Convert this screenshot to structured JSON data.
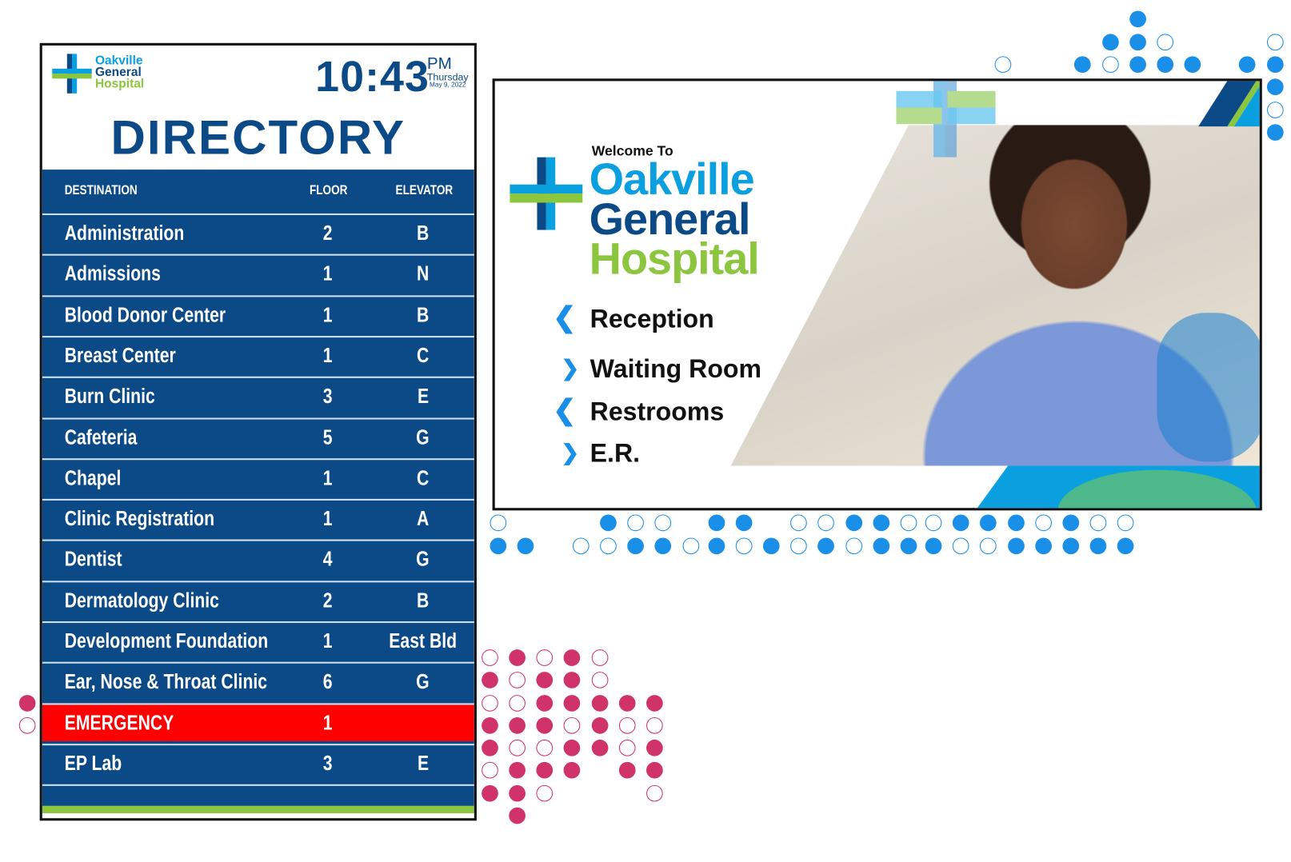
{
  "brand": {
    "line1": "Oakville",
    "line2": "General",
    "line3": "Hospital",
    "colors": {
      "blue": "#0b4a86",
      "light_blue": "#0aa0e0",
      "green": "#8cc63f",
      "emergency": "#ff0000",
      "dot_blue": "#1a8fe8",
      "dot_pink": "#d0326a"
    }
  },
  "directory": {
    "time": "10:43",
    "ampm": "PM",
    "weekday": "Thursday",
    "date": "May 9, 2022",
    "title": "DIRECTORY",
    "columns": {
      "destination": "DESTINATION",
      "floor": "FLOOR",
      "elevator": "ELEVATOR"
    },
    "rows": [
      {
        "name": "Administration",
        "floor": "2",
        "elevator": "B"
      },
      {
        "name": "Admissions",
        "floor": "1",
        "elevator": "N"
      },
      {
        "name": "Blood Donor Center",
        "floor": "1",
        "elevator": "B"
      },
      {
        "name": "Breast Center",
        "floor": "1",
        "elevator": "C"
      },
      {
        "name": "Burn Clinic",
        "floor": "3",
        "elevator": "E"
      },
      {
        "name": "Cafeteria",
        "floor": "5",
        "elevator": "G"
      },
      {
        "name": "Chapel",
        "floor": "1",
        "elevator": "C"
      },
      {
        "name": "Clinic Registration",
        "floor": "1",
        "elevator": "A"
      },
      {
        "name": "Dentist",
        "floor": "4",
        "elevator": "G"
      },
      {
        "name": "Dermatology Clinic",
        "floor": "2",
        "elevator": "B"
      },
      {
        "name": "Development Foundation",
        "floor": "1",
        "elevator": "East Bld"
      },
      {
        "name": "Ear, Nose & Throat Clinic",
        "floor": "6",
        "elevator": "G"
      },
      {
        "name": "EMERGENCY",
        "floor": "1",
        "elevator": "",
        "highlight": true
      },
      {
        "name": "EP Lab",
        "floor": "3",
        "elevator": "E"
      }
    ]
  },
  "welcome": {
    "intro": "Welcome To",
    "items": [
      {
        "label": "Reception",
        "direction": "left"
      },
      {
        "label": "Waiting Room",
        "direction": "right"
      },
      {
        "label": "Restrooms",
        "direction": "left"
      },
      {
        "label": "E.R.",
        "direction": "right"
      }
    ]
  }
}
